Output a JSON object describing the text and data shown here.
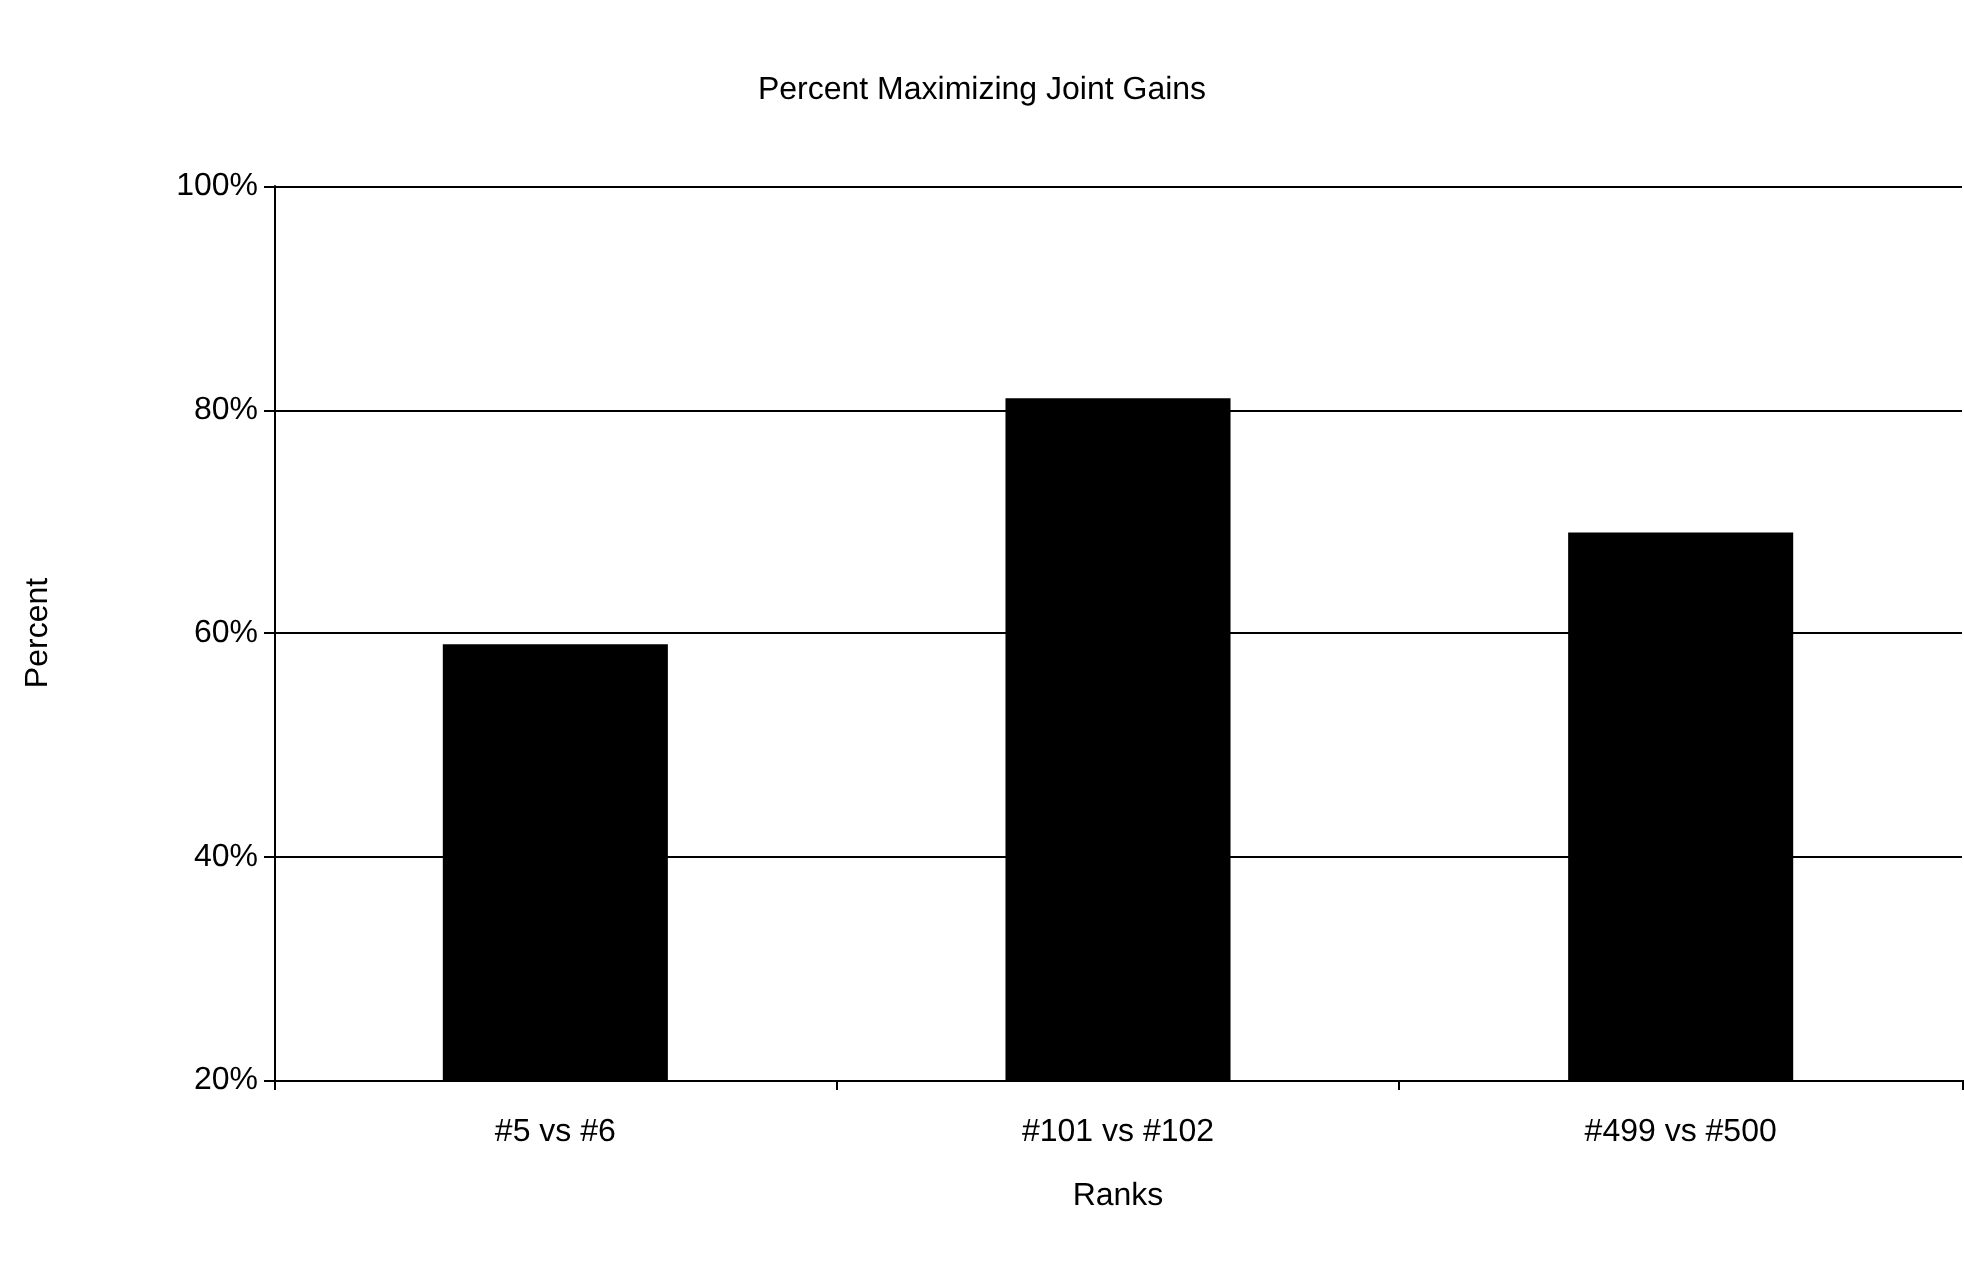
{
  "chart_data": {
    "type": "bar",
    "title": "Percent Maximizing Joint Gains",
    "xlabel": "Ranks",
    "ylabel": "Percent",
    "categories": [
      "#5 vs #6",
      "#101 vs #102",
      "#499 vs #500"
    ],
    "values": [
      59,
      81,
      69
    ],
    "color": "#000000",
    "ylim": [
      20,
      100
    ],
    "yticks": [
      {
        "value": 20,
        "label": "20%"
      },
      {
        "value": 40,
        "label": "40%"
      },
      {
        "value": 60,
        "label": "60%"
      },
      {
        "value": 80,
        "label": "80%"
      },
      {
        "value": 100,
        "label": "100%"
      }
    ],
    "grid": "y"
  }
}
